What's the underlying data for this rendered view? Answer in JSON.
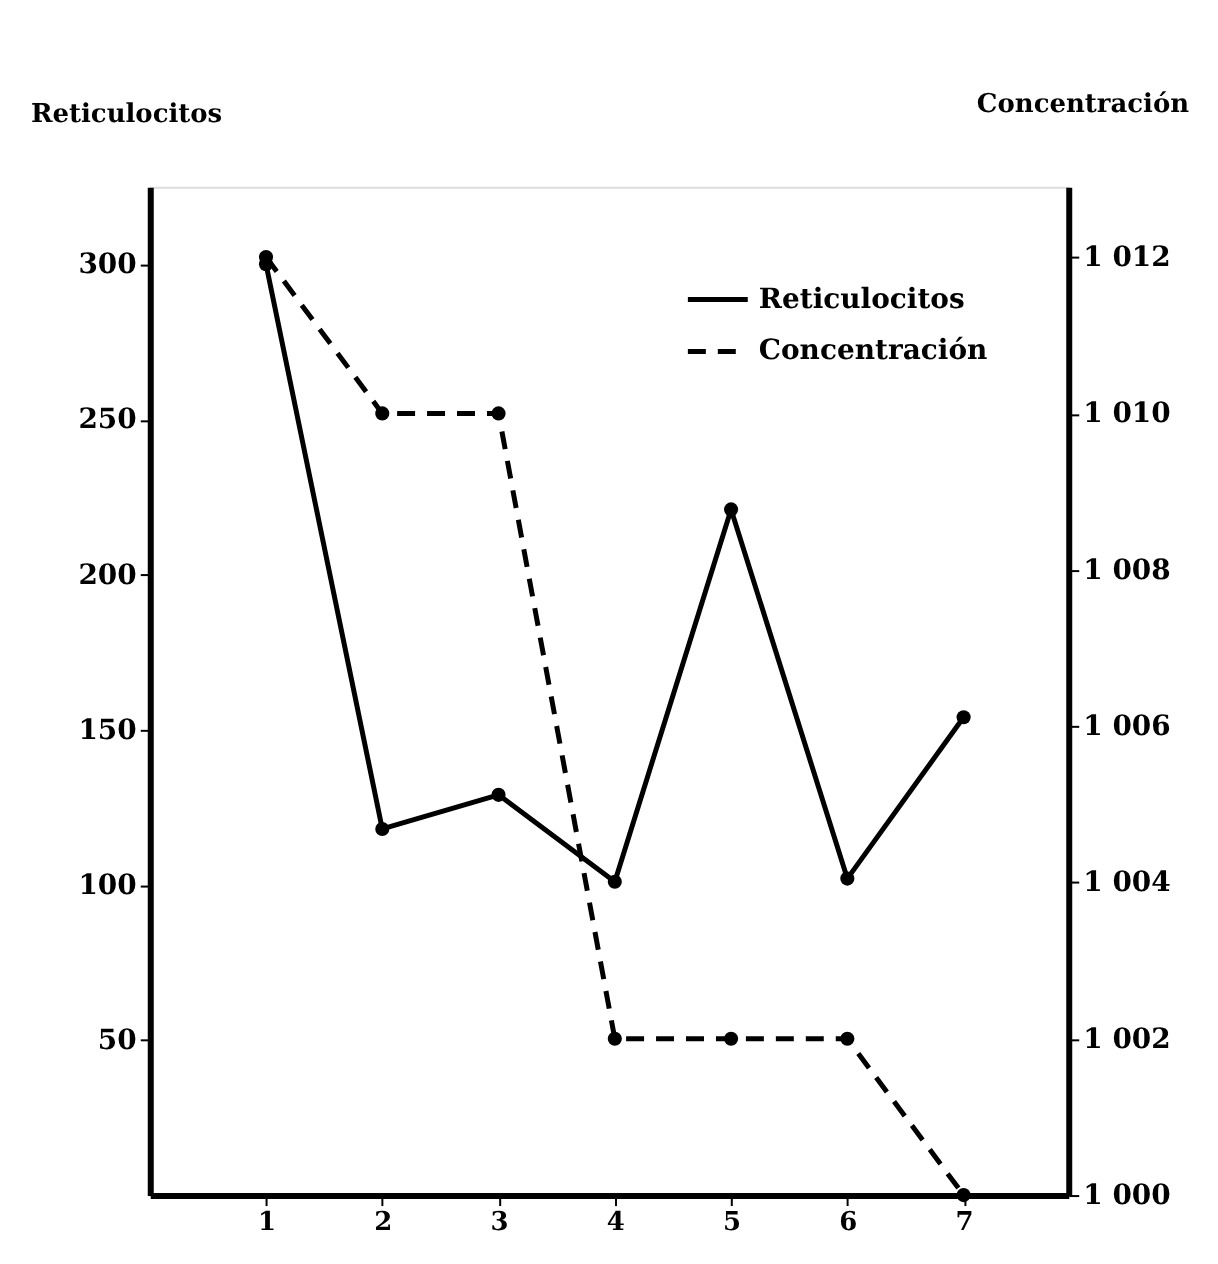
{
  "chart_data": {
    "type": "line",
    "ylabel": "Reticulocitos",
    "y2label": "Concentración",
    "x": [
      1,
      2,
      3,
      4,
      5,
      6,
      7
    ],
    "xlim": [
      0,
      7.9
    ],
    "xticks": [
      1,
      2,
      3,
      4,
      5,
      6,
      7
    ],
    "ylim": [
      0,
      325
    ],
    "yticks": [
      50,
      100,
      150,
      200,
      250,
      300
    ],
    "y2lim": [
      1000,
      1012.9
    ],
    "y2ticks": [
      {
        "value": 1000,
        "label": "1 000"
      },
      {
        "value": 1002,
        "label": "1 002"
      },
      {
        "value": 1004,
        "label": "1 004"
      },
      {
        "value": 1006,
        "label": "1 006"
      },
      {
        "value": 1008,
        "label": "1 008"
      },
      {
        "value": 1010,
        "label": "1 010"
      },
      {
        "value": 1012,
        "label": "1 012"
      }
    ],
    "series": [
      {
        "name": "Reticulocitos",
        "color": "#000000",
        "line_style": "solid",
        "values": [
          300,
          118,
          129,
          101,
          221,
          102,
          154
        ]
      },
      {
        "name": "Concentración",
        "color": "#000000",
        "line_style": "dashed",
        "axis": "y2",
        "values": [
          1012,
          1010,
          1010,
          1002,
          1002,
          1002,
          1000
        ]
      }
    ],
    "marker": "circle",
    "legend": "top right",
    "grid": false
  }
}
